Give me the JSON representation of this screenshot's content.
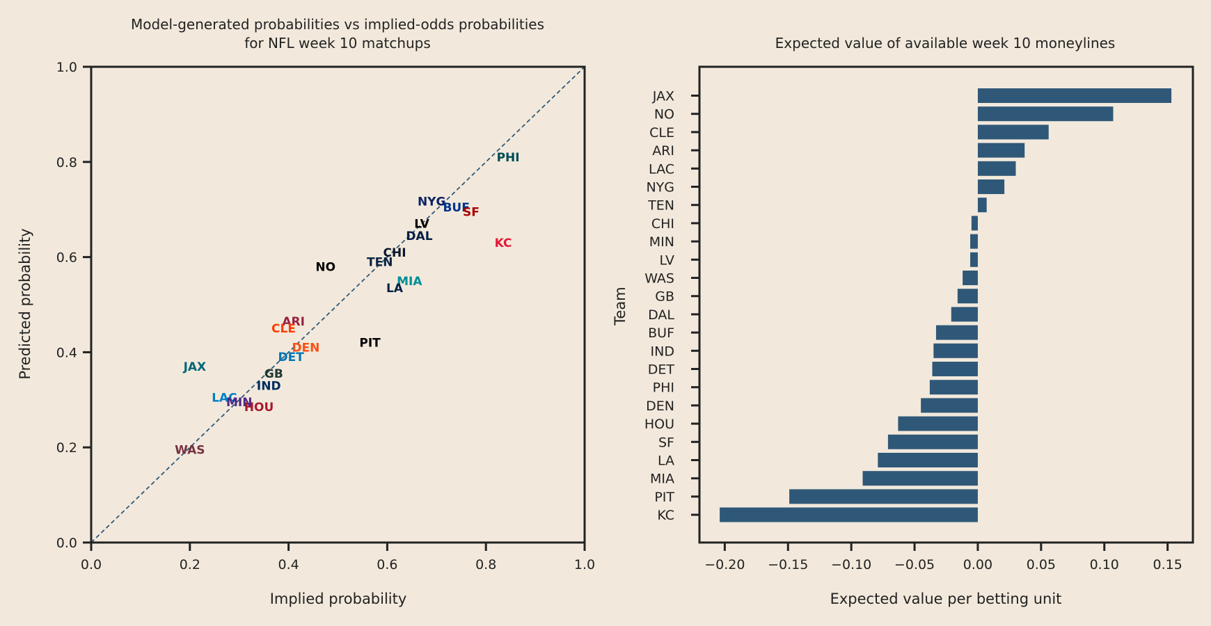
{
  "chart_data": [
    {
      "type": "scatter",
      "title_lines": [
        "Model-generated probabilities vs implied-odds probabilities",
        "for NFL week 10 matchups"
      ],
      "xlabel": "Implied probability",
      "ylabel": "Predicted probability",
      "xlim": [
        0,
        1
      ],
      "ylim": [
        0,
        1
      ],
      "x_ticks": [
        "0.0",
        "0.2",
        "0.4",
        "0.6",
        "0.8",
        "1.0"
      ],
      "y_ticks": [
        "0.0",
        "0.2",
        "0.4",
        "0.6",
        "0.8",
        "1.0"
      ],
      "reference_line": "y = x (dashed)",
      "grid": false,
      "points": [
        {
          "label": "PHI",
          "x": 0.845,
          "y": 0.81,
          "color": "#004c54"
        },
        {
          "label": "NYG",
          "x": 0.69,
          "y": 0.717,
          "color": "#0b2265"
        },
        {
          "label": "BUF",
          "x": 0.74,
          "y": 0.705,
          "color": "#00338d"
        },
        {
          "label": "SF",
          "x": 0.77,
          "y": 0.695,
          "color": "#aa0000"
        },
        {
          "label": "LV",
          "x": 0.67,
          "y": 0.67,
          "color": "#000000"
        },
        {
          "label": "DAL",
          "x": 0.665,
          "y": 0.645,
          "color": "#041e42"
        },
        {
          "label": "KC",
          "x": 0.835,
          "y": 0.63,
          "color": "#e31837"
        },
        {
          "label": "CHI",
          "x": 0.615,
          "y": 0.61,
          "color": "#0b162a"
        },
        {
          "label": "TEN",
          "x": 0.585,
          "y": 0.59,
          "color": "#0c2340"
        },
        {
          "label": "NO",
          "x": 0.475,
          "y": 0.58,
          "color": "#000000"
        },
        {
          "label": "MIA",
          "x": 0.645,
          "y": 0.55,
          "color": "#008e97"
        },
        {
          "label": "LA",
          "x": 0.615,
          "y": 0.535,
          "color": "#002244"
        },
        {
          "label": "ARI",
          "x": 0.41,
          "y": 0.465,
          "color": "#97233f"
        },
        {
          "label": "CLE",
          "x": 0.39,
          "y": 0.45,
          "color": "#ff3c00"
        },
        {
          "label": "DEN",
          "x": 0.435,
          "y": 0.41,
          "color": "#fb4f14"
        },
        {
          "label": "PIT",
          "x": 0.565,
          "y": 0.42,
          "color": "#000000"
        },
        {
          "label": "DET",
          "x": 0.405,
          "y": 0.39,
          "color": "#0076b6"
        },
        {
          "label": "JAX",
          "x": 0.21,
          "y": 0.37,
          "color": "#006778"
        },
        {
          "label": "GB",
          "x": 0.37,
          "y": 0.355,
          "color": "#203731"
        },
        {
          "label": "IND",
          "x": 0.36,
          "y": 0.33,
          "color": "#002c5f"
        },
        {
          "label": "LAC",
          "x": 0.27,
          "y": 0.305,
          "color": "#0080c6"
        },
        {
          "label": "MIN",
          "x": 0.3,
          "y": 0.295,
          "color": "#4f2683"
        },
        {
          "label": "HOU",
          "x": 0.34,
          "y": 0.285,
          "color": "#a71930"
        },
        {
          "label": "WAS",
          "x": 0.2,
          "y": 0.195,
          "color": "#773141"
        }
      ]
    },
    {
      "type": "bar",
      "orientation": "horizontal",
      "title": "Expected value of available week 10 moneylines",
      "xlabel": "Expected value per betting unit",
      "ylabel": "Team",
      "xlim": [
        -0.22,
        0.17
      ],
      "x_ticks": [
        "−0.20",
        "−0.15",
        "−0.10",
        "−0.05",
        "0.00",
        "0.05",
        "0.10",
        "0.15"
      ],
      "x_tick_values": [
        -0.2,
        -0.15,
        -0.1,
        -0.05,
        0.0,
        0.05,
        0.1,
        0.15
      ],
      "grid": false,
      "bar_color": "#2f5878",
      "categories": [
        "JAX",
        "NO",
        "CLE",
        "ARI",
        "LAC",
        "NYG",
        "TEN",
        "CHI",
        "MIN",
        "LV",
        "WAS",
        "GB",
        "DAL",
        "BUF",
        "IND",
        "DET",
        "PHI",
        "DEN",
        "HOU",
        "SF",
        "LA",
        "MIA",
        "PIT",
        "KC"
      ],
      "values": [
        0.153,
        0.107,
        0.056,
        0.037,
        0.03,
        0.021,
        0.007,
        -0.005,
        -0.006,
        -0.006,
        -0.012,
        -0.016,
        -0.021,
        -0.033,
        -0.035,
        -0.036,
        -0.038,
        -0.045,
        -0.063,
        -0.071,
        -0.079,
        -0.091,
        -0.149,
        -0.204
      ]
    }
  ]
}
